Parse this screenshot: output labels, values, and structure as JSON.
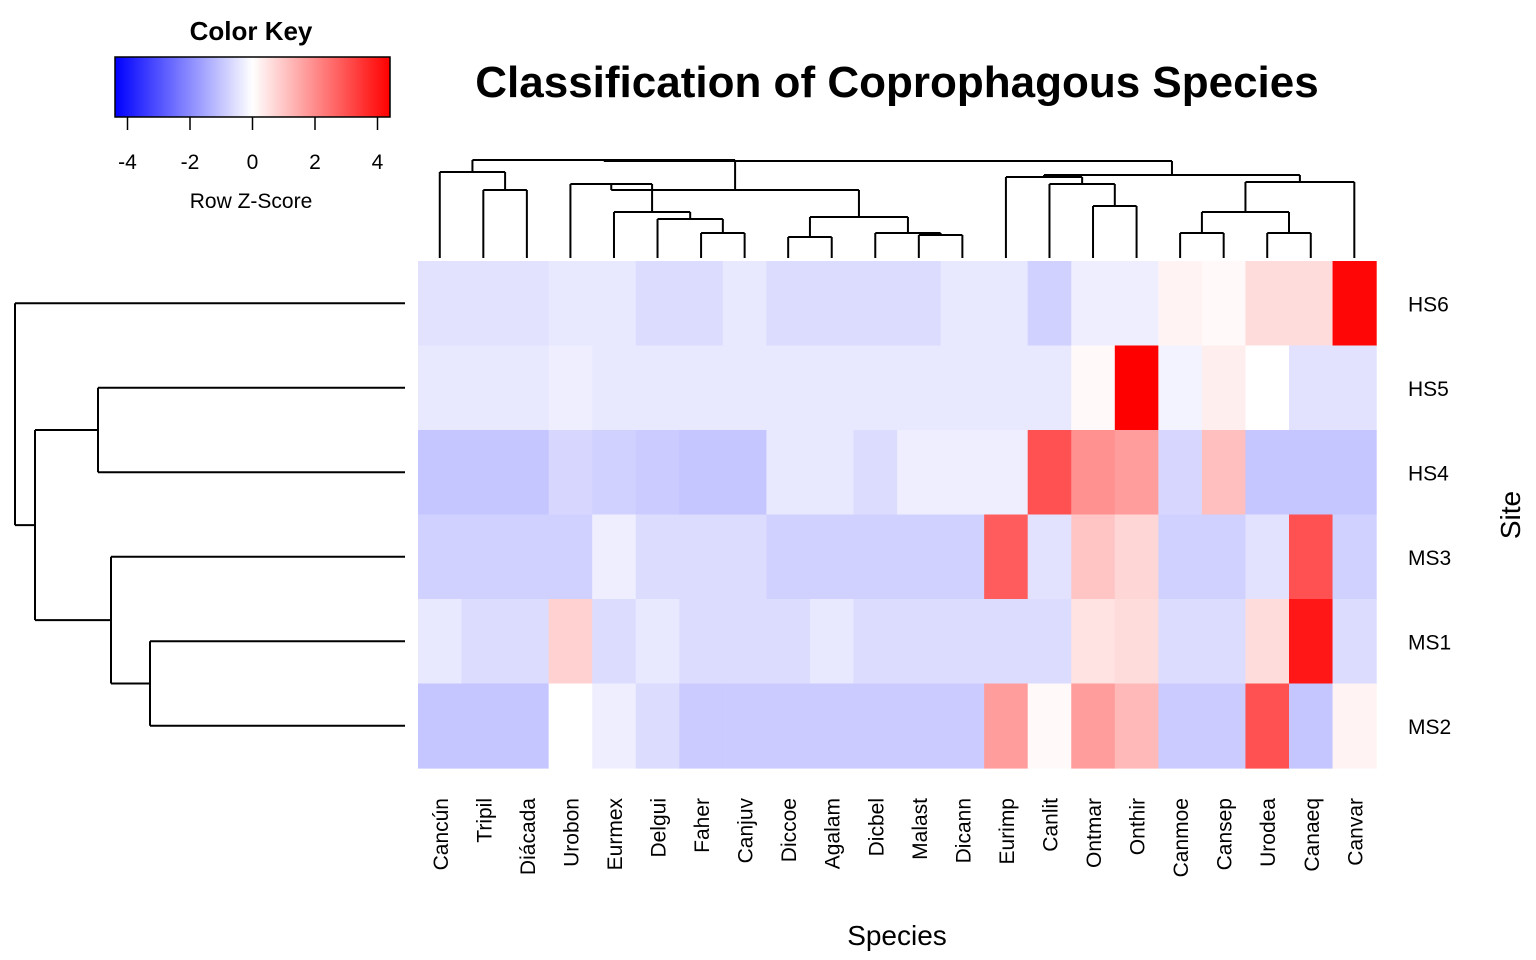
{
  "chart_data": {
    "type": "heatmap",
    "title": "Classification of Coprophagous Species",
    "xlabel": "Species",
    "ylabel": "Site",
    "columns": [
      "Cancún",
      "Tripil",
      "Diácada",
      "Urobon",
      "Eurmex",
      "Delgui",
      "Faher",
      "Canjuv",
      "Diccoe",
      "Agalam",
      "Dicbel",
      "Malast",
      "Dicann",
      "Eurimp",
      "Canlit",
      "Ontmar",
      "Onthir",
      "Canmoe",
      "Cansep",
      "Urodea",
      "Canaeq",
      "Canvar"
    ],
    "rows": [
      "HS6",
      "HS5",
      "HS4",
      "MS3",
      "MS1",
      "MS2"
    ],
    "values": [
      [
        -0.5,
        -0.5,
        -0.5,
        -0.4,
        -0.4,
        -0.6,
        -0.6,
        -0.4,
        -0.6,
        -0.6,
        -0.6,
        -0.6,
        -0.4,
        -0.4,
        -0.8,
        -0.3,
        -0.3,
        0.2,
        0.1,
        0.6,
        0.6,
        4.3
      ],
      [
        -0.4,
        -0.4,
        -0.4,
        -0.3,
        -0.4,
        -0.4,
        -0.4,
        -0.4,
        -0.4,
        -0.4,
        -0.4,
        -0.4,
        -0.4,
        -0.4,
        -0.4,
        0.1,
        4.4,
        -0.2,
        0.3,
        0.0,
        -0.5,
        -0.5
      ],
      [
        -1.0,
        -1.0,
        -1.0,
        -0.7,
        -0.8,
        -0.9,
        -1.0,
        -1.0,
        -0.4,
        -0.4,
        -0.6,
        -0.3,
        -0.3,
        -0.3,
        3.0,
        1.9,
        1.7,
        -0.7,
        1.1,
        -1.0,
        -1.0,
        -1.0
      ],
      [
        -0.8,
        -0.8,
        -0.8,
        -0.8,
        -0.3,
        -0.6,
        -0.6,
        -0.6,
        -0.8,
        -0.8,
        -0.8,
        -0.8,
        -0.8,
        2.8,
        -0.5,
        1.0,
        0.7,
        -0.8,
        -0.8,
        -0.5,
        3.0,
        -0.8
      ],
      [
        -0.4,
        -0.6,
        -0.6,
        0.8,
        -0.6,
        -0.4,
        -0.6,
        -0.6,
        -0.6,
        -0.4,
        -0.6,
        -0.6,
        -0.6,
        -0.6,
        -0.6,
        0.5,
        0.6,
        -0.6,
        -0.6,
        0.6,
        4.0,
        -0.6
      ],
      [
        -1.0,
        -1.0,
        -1.0,
        0.0,
        -0.3,
        -0.6,
        -0.9,
        -0.9,
        -0.9,
        -0.9,
        -0.9,
        -0.9,
        -0.9,
        1.7,
        0.1,
        1.7,
        1.2,
        -0.9,
        -0.9,
        3.0,
        -1.0,
        0.2
      ]
    ],
    "color_key": {
      "title": "Color Key",
      "label": "Row Z-Score",
      "ticks": [
        -4,
        -2,
        0,
        2,
        4
      ],
      "tick_labels": [
        "-4",
        "-2",
        "0",
        "2",
        "4"
      ],
      "range": [
        -4.4,
        4.4
      ],
      "colors": {
        "low": "#0000ff",
        "mid": "#ffffff",
        "high": "#ff0000"
      }
    }
  }
}
